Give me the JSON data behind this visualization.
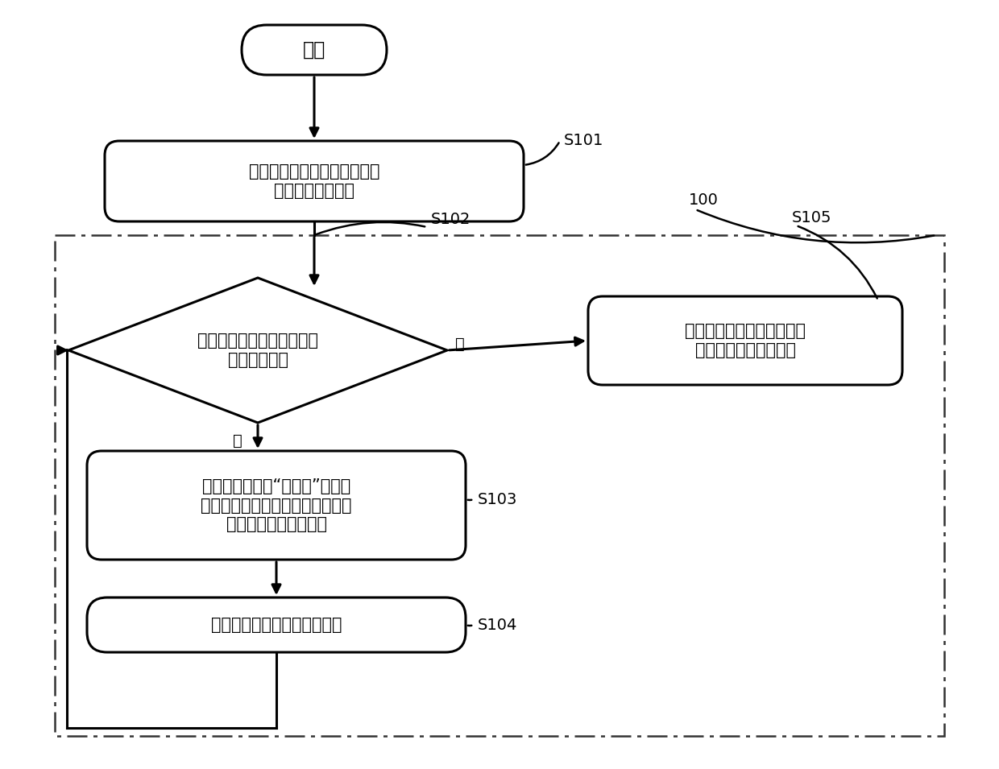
{
  "bg_color": "#ffffff",
  "border_color": "#000000",
  "box_color": "#ffffff",
  "text_color": "#000000",
  "arrow_color": "#000000",
  "dashed_border_color": "#333333",
  "start_text": "开始",
  "s101_text": "读取货运航班信息和停机位信\n息，确定输入信息",
  "s102_diamond_text": "分配数量是否等于需要分配\n的航班数量？",
  "s103_text": "从停机位状态为“未占有”的停机\n位中搜索符合约束他条件的停机位\n号，匹配给当前航班号",
  "s104_text": "读取下一个需要分配的航班号",
  "s105_text": "输出符合约束条件的航班与\n停机位之间的对应信息",
  "label_s101": "S101",
  "label_s102": "S102",
  "label_s103": "S103",
  "label_s104": "S104",
  "label_s105": "S105",
  "label_100": "100",
  "label_yes": "是",
  "label_no": "否",
  "figsize": [
    12.4,
    9.55
  ],
  "dpi": 100
}
